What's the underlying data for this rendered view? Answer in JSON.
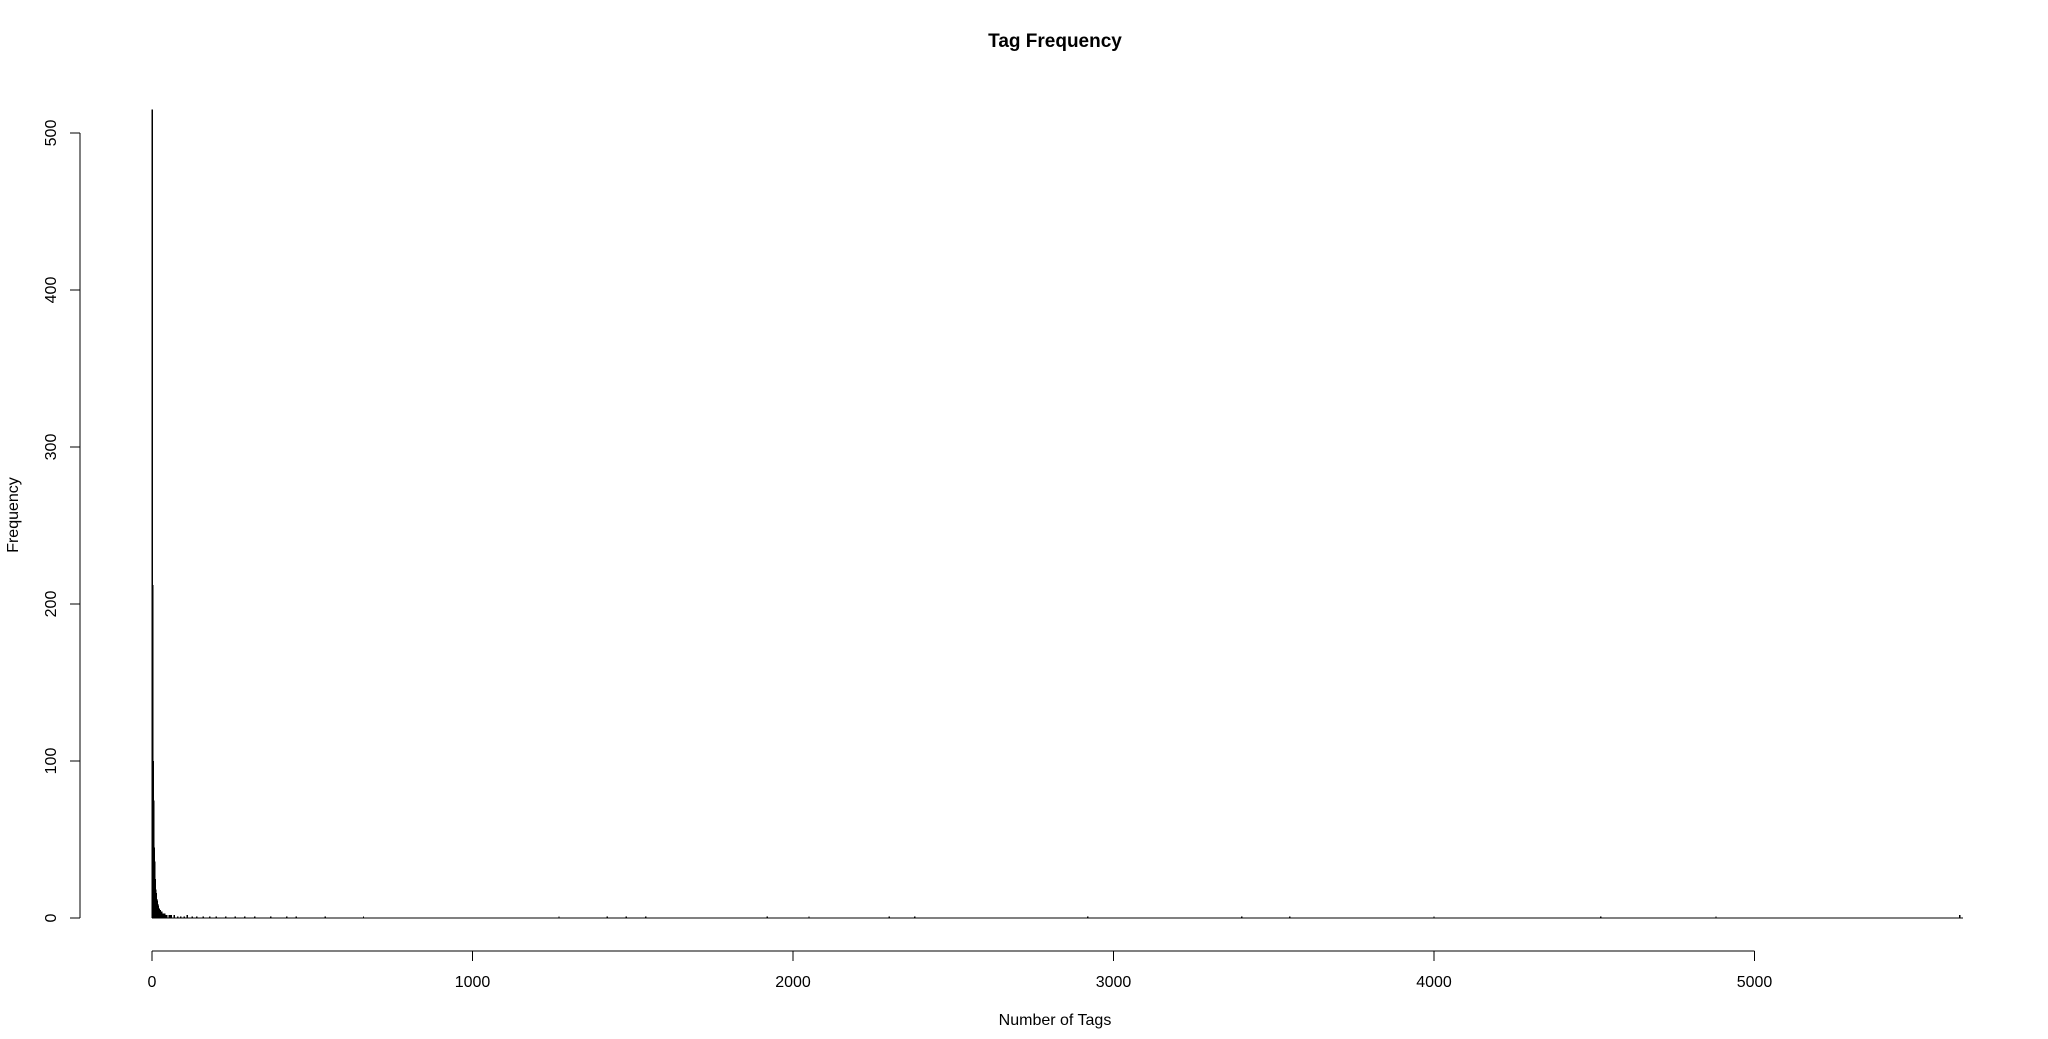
{
  "chart_data": {
    "type": "bar",
    "title": "Tag Frequency",
    "xlabel": "Number of Tags",
    "ylabel": "Frequency",
    "xlim": [
      0,
      5650
    ],
    "ylim": [
      0,
      515
    ],
    "x_ticks": [
      0,
      1000,
      2000,
      3000,
      4000,
      5000
    ],
    "y_ticks": [
      0,
      100,
      200,
      300,
      400,
      500
    ],
    "grid": false,
    "legend": "none",
    "bar_color": "#000000",
    "x": [
      1,
      2,
      3,
      4,
      5,
      6,
      7,
      8,
      9,
      10,
      11,
      12,
      13,
      14,
      15,
      16,
      17,
      18,
      19,
      20,
      22,
      24,
      26,
      28,
      30,
      33,
      36,
      40,
      45,
      50,
      55,
      60,
      70,
      80,
      90,
      100,
      110,
      125,
      140,
      160,
      180,
      200,
      230,
      260,
      290,
      320,
      370,
      420,
      450,
      540,
      660,
      1270,
      1420,
      1480,
      1540,
      1920,
      2050,
      2300,
      2380,
      2920,
      3400,
      3550,
      4000,
      4520,
      4880,
      5640
    ],
    "values": [
      515,
      212,
      142,
      100,
      75,
      58,
      45,
      36,
      30,
      25,
      21,
      18,
      16,
      14,
      12,
      11,
      10,
      9,
      8,
      7,
      6,
      5,
      5,
      4,
      4,
      3,
      3,
      3,
      2,
      2,
      2,
      2,
      2,
      1,
      1,
      1,
      2,
      1,
      1,
      1,
      1,
      1,
      1,
      1,
      1,
      1,
      1,
      1,
      1,
      1,
      1,
      1,
      1,
      1,
      1,
      1,
      1,
      1,
      1,
      1,
      1,
      1,
      1,
      1,
      1,
      2
    ]
  }
}
